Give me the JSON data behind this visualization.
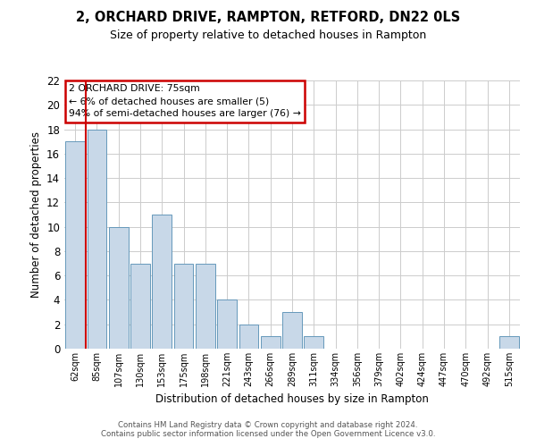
{
  "title": "2, ORCHARD DRIVE, RAMPTON, RETFORD, DN22 0LS",
  "subtitle": "Size of property relative to detached houses in Rampton",
  "xlabel": "Distribution of detached houses by size in Rampton",
  "ylabel": "Number of detached properties",
  "categories": [
    "62sqm",
    "85sqm",
    "107sqm",
    "130sqm",
    "153sqm",
    "175sqm",
    "198sqm",
    "221sqm",
    "243sqm",
    "266sqm",
    "289sqm",
    "311sqm",
    "334sqm",
    "356sqm",
    "379sqm",
    "402sqm",
    "424sqm",
    "447sqm",
    "470sqm",
    "492sqm",
    "515sqm"
  ],
  "values": [
    17,
    18,
    10,
    7,
    11,
    7,
    7,
    4,
    2,
    1,
    3,
    1,
    0,
    0,
    0,
    0,
    0,
    0,
    0,
    0,
    1
  ],
  "bar_color": "#c8d8e8",
  "bar_edge_color": "#6699bb",
  "highlight_color": "#cc0000",
  "annotation_lines": [
    "2 ORCHARD DRIVE: 75sqm",
    "← 6% of detached houses are smaller (5)",
    "94% of semi-detached houses are larger (76) →"
  ],
  "annotation_box_color": "#cc0000",
  "ylim": [
    0,
    22
  ],
  "yticks": [
    0,
    2,
    4,
    6,
    8,
    10,
    12,
    14,
    16,
    18,
    20,
    22
  ],
  "footer1": "Contains HM Land Registry data © Crown copyright and database right 2024.",
  "footer2": "Contains public sector information licensed under the Open Government Licence v3.0.",
  "bg_color": "#ffffff",
  "grid_color": "#cccccc"
}
